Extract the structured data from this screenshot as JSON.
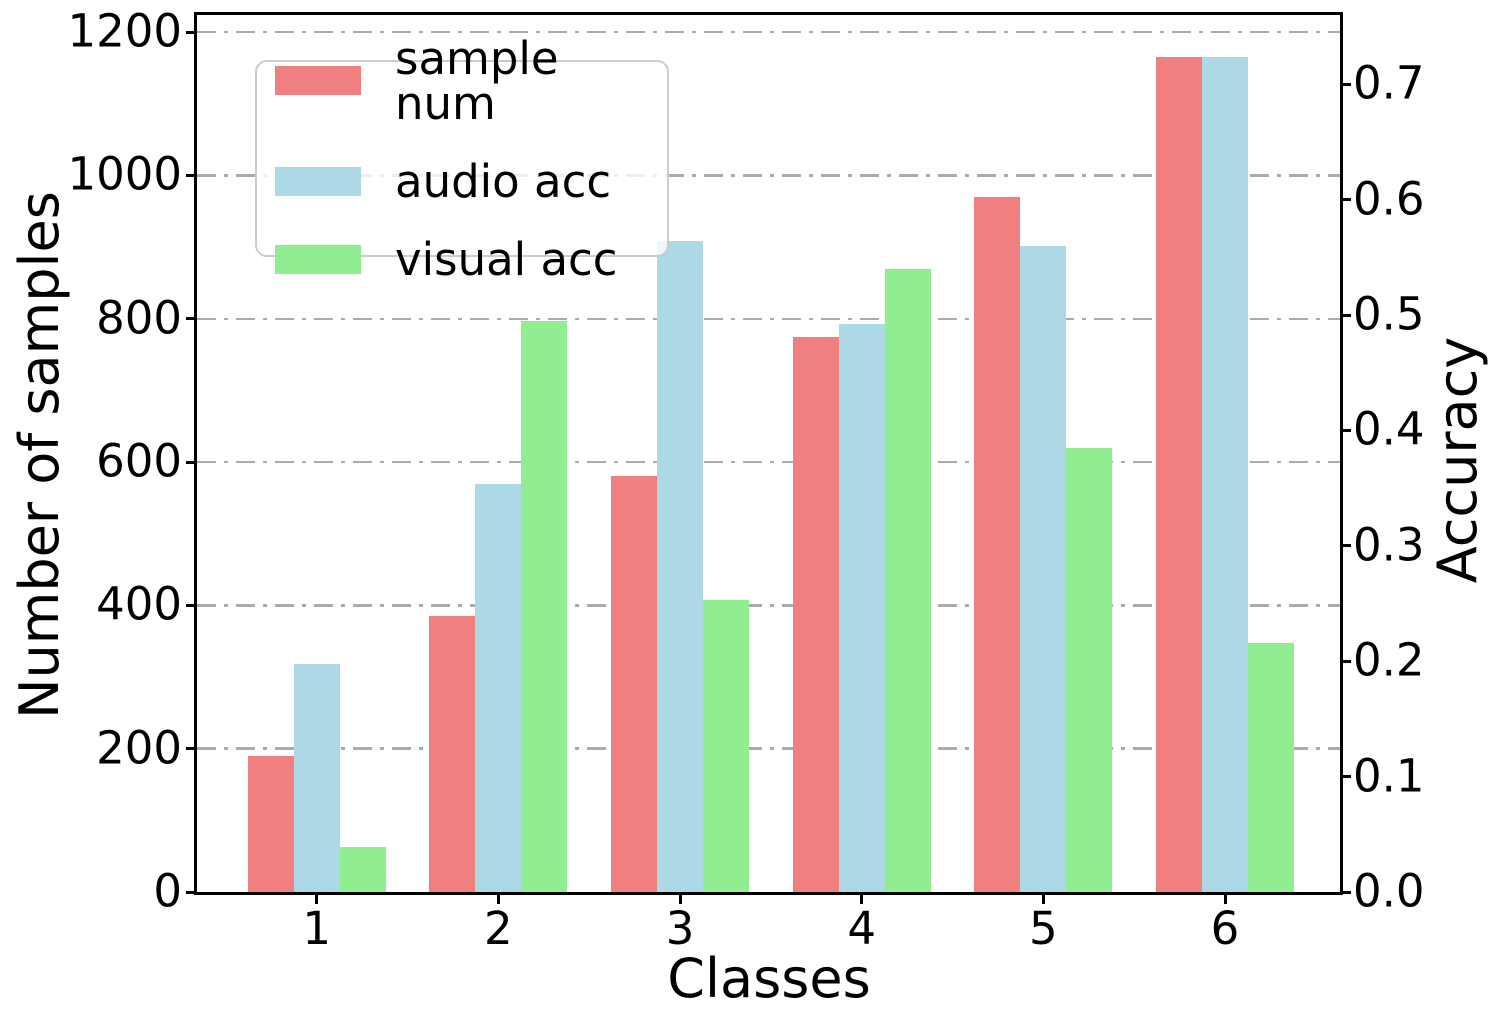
{
  "chart_data": {
    "type": "bar",
    "title": "",
    "xlabel": "Classes",
    "ylabel_left": "Number of samples",
    "ylabel_right": "Accuracy",
    "categories": [
      "1",
      "2",
      "3",
      "4",
      "5",
      "6"
    ],
    "series": [
      {
        "name": "sample num",
        "axis": "left",
        "color": "#F08080",
        "values": [
          190,
          385,
          580,
          775,
          970,
          1165
        ]
      },
      {
        "name": "audio acc",
        "axis": "right",
        "color": "#ADD8E6",
        "values": [
          0.198,
          0.354,
          0.564,
          0.492,
          0.56,
          0.724
        ]
      },
      {
        "name": "visual acc",
        "axis": "right",
        "color": "#90EE90",
        "values": [
          0.039,
          0.495,
          0.253,
          0.54,
          0.385,
          0.216
        ]
      }
    ],
    "y_ticks_left": [
      "0",
      "200",
      "400",
      "600",
      "800",
      "1000",
      "1200"
    ],
    "y_ticks_right": [
      "0.0",
      "0.1",
      "0.2",
      "0.3",
      "0.4",
      "0.5",
      "0.6",
      "0.7"
    ],
    "ylim_left": [
      0,
      1224
    ],
    "ylim_right": [
      0,
      0.76
    ],
    "grid": "horizontal dash-dot lines at left-axis ticks",
    "legend_position": "upper left"
  },
  "colors": {
    "sample_num": "#F08080",
    "audio_acc": "#ADD8E6",
    "visual_acc": "#90EE90",
    "grid": "#ababab",
    "spine": "#000000",
    "background": "#ffffff",
    "legend_border": "#cccccc"
  }
}
